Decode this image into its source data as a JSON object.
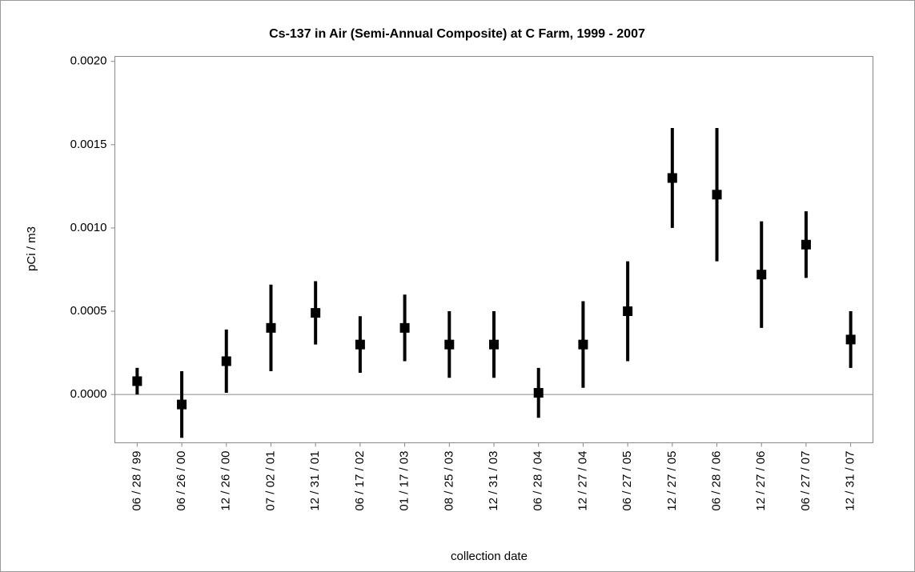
{
  "chart_data": {
    "type": "errorbar",
    "title": "Cs-137 in Air (Semi-Annual Composite) at C Farm, 1999 - 2007",
    "x_label": "collection date",
    "y_label": "pCi / m3",
    "categories": [
      "06 / 28 / 99",
      "06 / 26 / 00",
      "12 / 26 / 00",
      "07 / 02 / 01",
      "12 / 31 / 01",
      "06 / 17 / 02",
      "01 / 17 / 03",
      "08 / 25 / 03",
      "12 / 31 / 03",
      "06 / 28 / 04",
      "12 / 27 / 04",
      "06 / 27 / 05",
      "12 / 27 / 05",
      "06 / 28 / 06",
      "12 / 27 / 06",
      "06 / 27 / 07",
      "12 / 31 / 07"
    ],
    "series": [
      {
        "color": "#000000",
        "values": [
          8e-05,
          -6e-05,
          0.0002,
          0.0004,
          0.00049,
          0.0003,
          0.0004,
          0.0003,
          0.0003,
          1e-05,
          0.0003,
          0.0005,
          0.0013,
          0.0012,
          0.00072,
          0.0009,
          0.00033
        ],
        "errors": [
          8e-05,
          0.0002,
          0.00019,
          0.00026,
          0.00019,
          0.00017,
          0.0002,
          0.0002,
          0.0002,
          0.00015,
          0.00026,
          0.0003,
          0.0003,
          0.0004,
          0.00032,
          0.0002,
          0.00017
        ]
      }
    ],
    "ylim": [
      -0.00029,
      0.00203
    ],
    "yticks": [
      {
        "value": 0,
        "label": "0.0000"
      },
      {
        "value": 0.0005,
        "label": "0.0005"
      },
      {
        "value": 0.001,
        "label": "0.0010"
      },
      {
        "value": 0.0015,
        "label": "0.0015"
      },
      {
        "value": 0.002,
        "label": "0.0020"
      }
    ],
    "zero_line": true,
    "grid": false
  }
}
